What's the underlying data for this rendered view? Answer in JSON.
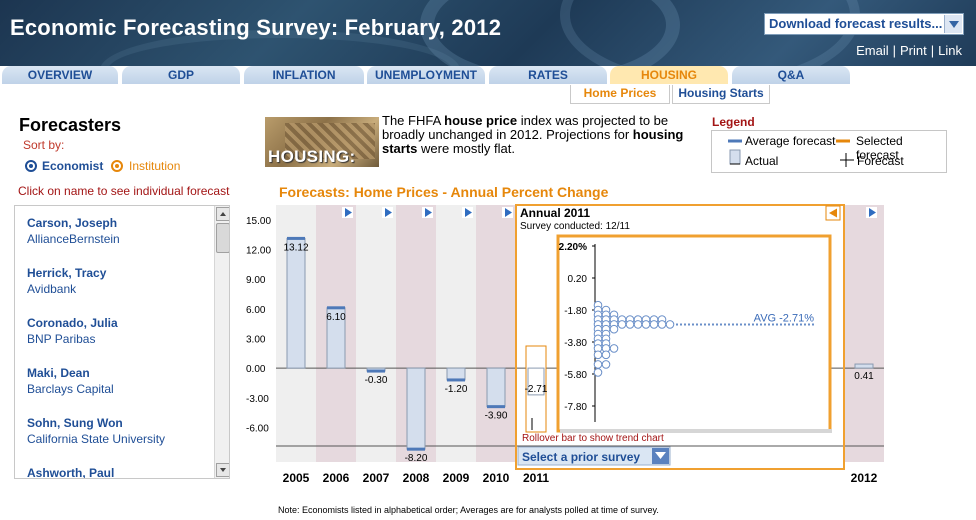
{
  "header": {
    "title": "Economic Forecasting Survey:  February, 2012",
    "download_label": "Download forecast results...",
    "links": [
      "Email",
      "Print",
      "Link"
    ]
  },
  "tabs": [
    {
      "label": "OVERVIEW",
      "active": false
    },
    {
      "label": "GDP",
      "active": false
    },
    {
      "label": "INFLATION",
      "active": false
    },
    {
      "label": "UNEMPLOYMENT",
      "active": false
    },
    {
      "label": "RATES",
      "active": false
    },
    {
      "label": "HOUSING",
      "active": true
    },
    {
      "label": "Q&A",
      "active": false
    }
  ],
  "subtabs": {
    "home_prices": "Home Prices",
    "housing_starts": "Housing Starts"
  },
  "sidebar": {
    "title": "Forecasters",
    "sort_label": "Sort by:",
    "sort_economist": "Economist",
    "sort_institution": "Institution",
    "click_hint": "Click on name to see individual forecast",
    "forecasters": [
      {
        "name": "Carson, Joseph",
        "institution": "AllianceBernstein"
      },
      {
        "name": "Herrick, Tracy",
        "institution": "Avidbank"
      },
      {
        "name": "Coronado, Julia",
        "institution": "BNP Paribas"
      },
      {
        "name": "Maki, Dean",
        "institution": "Barclays Capital"
      },
      {
        "name": "Sohn, Sung Won",
        "institution": "California State University"
      },
      {
        "name": "Ashworth, Paul",
        "institution": ""
      }
    ]
  },
  "intro": {
    "image_label": "HOUSING:",
    "text_1": "The FHFA ",
    "bold_1": "house price",
    "text_2": " index was projected to be broadly unchanged in 2012. Projections for ",
    "bold_2": "housing starts",
    "text_3": " were mostly flat."
  },
  "legend": {
    "title": "Legend",
    "average": "Average forecast",
    "selected": "Selected forecast",
    "actual": "Actual",
    "forecast": "Forecast",
    "colors": {
      "average": "#4e79b8",
      "selected": "#e6870b"
    }
  },
  "chart_title": "Forecasts: Home Prices - Annual Percent Change",
  "chart_data": {
    "type": "bar",
    "categories": [
      "2005",
      "2006",
      "2007",
      "2008",
      "2009",
      "2010",
      "2011",
      "2012"
    ],
    "values": [
      13.12,
      6.1,
      -0.3,
      -8.2,
      -1.2,
      -3.9,
      -2.71,
      0.41
    ],
    "value_labels": [
      "13.12",
      "6.10",
      "-0.30",
      "-8.20",
      "-1.20",
      "-3.90",
      "-2.71",
      "0.41"
    ],
    "y_ticks": [
      "15.00",
      "12.00",
      "9.00",
      "6.00",
      "3.00",
      "0.00",
      "-3.00",
      "-6.00"
    ],
    "ylim": [
      -9.5,
      16.5
    ],
    "grid": false,
    "popup": {
      "title": "Annual 2011",
      "survey": "Survey conducted: 12/11",
      "y_ticks": [
        "2.20%",
        "0.20",
        "-1.80",
        "-3.80",
        "-5.80",
        "-7.80"
      ],
      "ylim": [
        -8.8,
        2.2
      ],
      "avg_label": "AVG -2.71%",
      "avg_value": -2.71,
      "dot_rows": [
        {
          "y": -1.5,
          "count": 1
        },
        {
          "y": -1.8,
          "count": 2
        },
        {
          "y": -2.1,
          "count": 3
        },
        {
          "y": -2.4,
          "count": 9
        },
        {
          "y": -2.7,
          "count": 10
        },
        {
          "y": -3.0,
          "count": 3
        },
        {
          "y": -3.3,
          "count": 2
        },
        {
          "y": -3.6,
          "count": 2
        },
        {
          "y": -3.9,
          "count": 2
        },
        {
          "y": -4.2,
          "count": 3
        },
        {
          "y": -4.6,
          "count": 2
        },
        {
          "y": -5.2,
          "count": 2
        },
        {
          "y": -5.7,
          "count": 1
        }
      ],
      "rollover_hint": "Rollover bar to show trend chart",
      "prior_survey_label": "Select a prior survey"
    }
  },
  "footnote": "Note: Economists listed in alphabetical order; Averages are for analysts polled at time of survey."
}
